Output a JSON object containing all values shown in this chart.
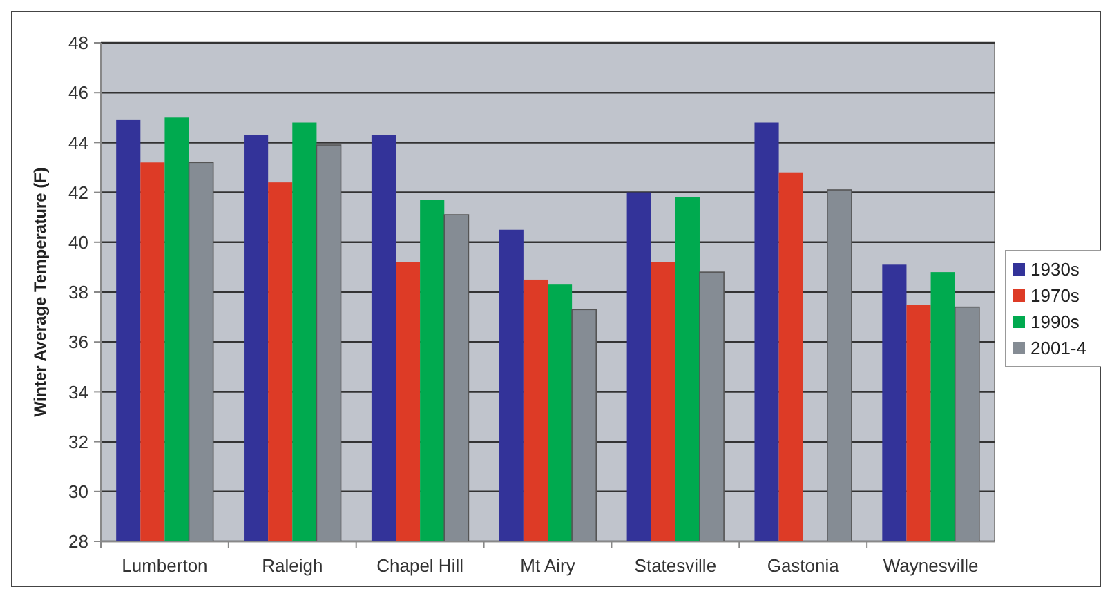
{
  "chart_data": {
    "type": "bar",
    "ylabel": "Winter Average Temperature (F)",
    "categories": [
      "Lumberton",
      "Raleigh",
      "Chapel Hill",
      "Mt Airy",
      "Statesville",
      "Gastonia",
      "Waynesville"
    ],
    "series": [
      {
        "name": "1930s",
        "color": "#333399",
        "values": [
          44.9,
          44.3,
          44.3,
          40.5,
          42.0,
          44.8,
          39.1
        ]
      },
      {
        "name": "1970s",
        "color": "#dd3b26",
        "values": [
          43.2,
          42.4,
          39.2,
          38.5,
          39.2,
          42.8,
          37.5
        ]
      },
      {
        "name": "1990s",
        "color": "#00aa4f",
        "values": [
          45.0,
          44.8,
          41.7,
          38.3,
          41.8,
          null,
          38.8
        ]
      },
      {
        "name": "2001-4",
        "color": "#858c94",
        "values": [
          43.2,
          43.9,
          41.1,
          37.3,
          38.8,
          42.1,
          37.4
        ]
      }
    ],
    "ylim": [
      28,
      48
    ],
    "yticks": [
      28,
      30,
      32,
      34,
      36,
      38,
      40,
      42,
      44,
      46,
      48
    ],
    "grid": "y",
    "legend": "right"
  }
}
